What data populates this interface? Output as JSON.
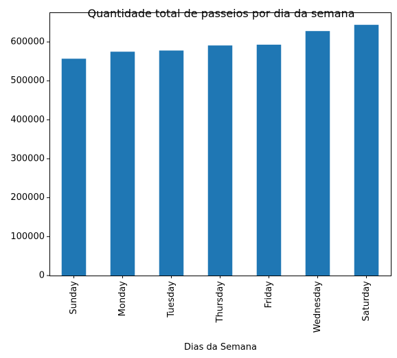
{
  "chart_data": {
    "type": "bar",
    "title": "Quantidade total de passeios por dia da semana",
    "xlabel": "Dias da Semana",
    "ylabel": "",
    "categories": [
      "Sunday",
      "Monday",
      "Tuesday",
      "Thursday",
      "Friday",
      "Wednesday",
      "Saturday"
    ],
    "values": [
      557000,
      575000,
      578000,
      591000,
      593000,
      628000,
      644000
    ],
    "ylim": [
      0,
      676000
    ],
    "yticks": [
      0,
      100000,
      200000,
      300000,
      400000,
      500000,
      600000
    ],
    "ytick_labels": [
      "0",
      "100000",
      "200000",
      "300000",
      "400000",
      "500000",
      "600000"
    ],
    "bar_color": "#1f77b4",
    "grid": false,
    "legend": "none"
  }
}
